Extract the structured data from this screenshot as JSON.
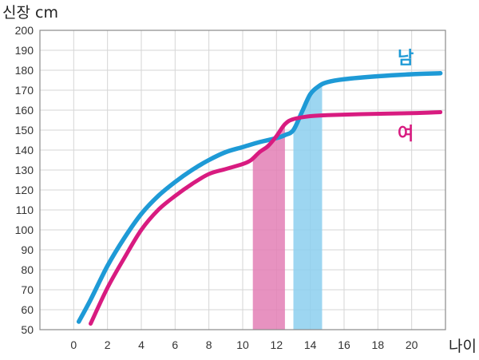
{
  "chart_data": {
    "type": "line",
    "title": "",
    "ylabel": "신장 cm",
    "xlabel": "나이",
    "xlim": [
      -2,
      22
    ],
    "ylim": [
      50,
      200
    ],
    "x_ticks": [
      0,
      2,
      4,
      6,
      8,
      10,
      12,
      14,
      16,
      18,
      20
    ],
    "y_ticks": [
      50,
      60,
      70,
      80,
      90,
      100,
      110,
      120,
      130,
      140,
      150,
      160,
      170,
      180,
      190,
      200
    ],
    "grid": true,
    "series": [
      {
        "name": "남",
        "color": "#1e9ad6",
        "points": [
          [
            0.3,
            54
          ],
          [
            1,
            65
          ],
          [
            2,
            82
          ],
          [
            3,
            96
          ],
          [
            4,
            108
          ],
          [
            5,
            117
          ],
          [
            6,
            124
          ],
          [
            7,
            130
          ],
          [
            8,
            135
          ],
          [
            9,
            139
          ],
          [
            10,
            141.5
          ],
          [
            11,
            144
          ],
          [
            12,
            146
          ],
          [
            12.5,
            147.5
          ],
          [
            13,
            150
          ],
          [
            13.5,
            159
          ],
          [
            14,
            168
          ],
          [
            14.5,
            172
          ],
          [
            15,
            174
          ],
          [
            16,
            175.5
          ],
          [
            18,
            177
          ],
          [
            20,
            178
          ],
          [
            21.7,
            178.5
          ]
        ]
      },
      {
        "name": "여",
        "color": "#d81b80",
        "points": [
          [
            1,
            53
          ],
          [
            2,
            71
          ],
          [
            3,
            86
          ],
          [
            4,
            100
          ],
          [
            5,
            110
          ],
          [
            6,
            117
          ],
          [
            7,
            123
          ],
          [
            8,
            128
          ],
          [
            9,
            130.5
          ],
          [
            10,
            133
          ],
          [
            10.5,
            135
          ],
          [
            11,
            139
          ],
          [
            11.5,
            142
          ],
          [
            12,
            147
          ],
          [
            12.5,
            153
          ],
          [
            13,
            155.5
          ],
          [
            14,
            157
          ],
          [
            15,
            157.5
          ],
          [
            17,
            158
          ],
          [
            20,
            158.5
          ],
          [
            21.7,
            159
          ]
        ]
      }
    ],
    "highlights": [
      {
        "series": "여",
        "x_start": 10.6,
        "x_end": 12.5,
        "color": "#e37fb5"
      },
      {
        "series": "남",
        "x_start": 13.0,
        "x_end": 14.7,
        "color": "#8ccfee"
      }
    ],
    "legend": [
      {
        "label": "남",
        "color": "#1e9ad6",
        "placement": "right-upper"
      },
      {
        "label": "여",
        "color": "#d81b80",
        "placement": "right-middle"
      }
    ]
  }
}
